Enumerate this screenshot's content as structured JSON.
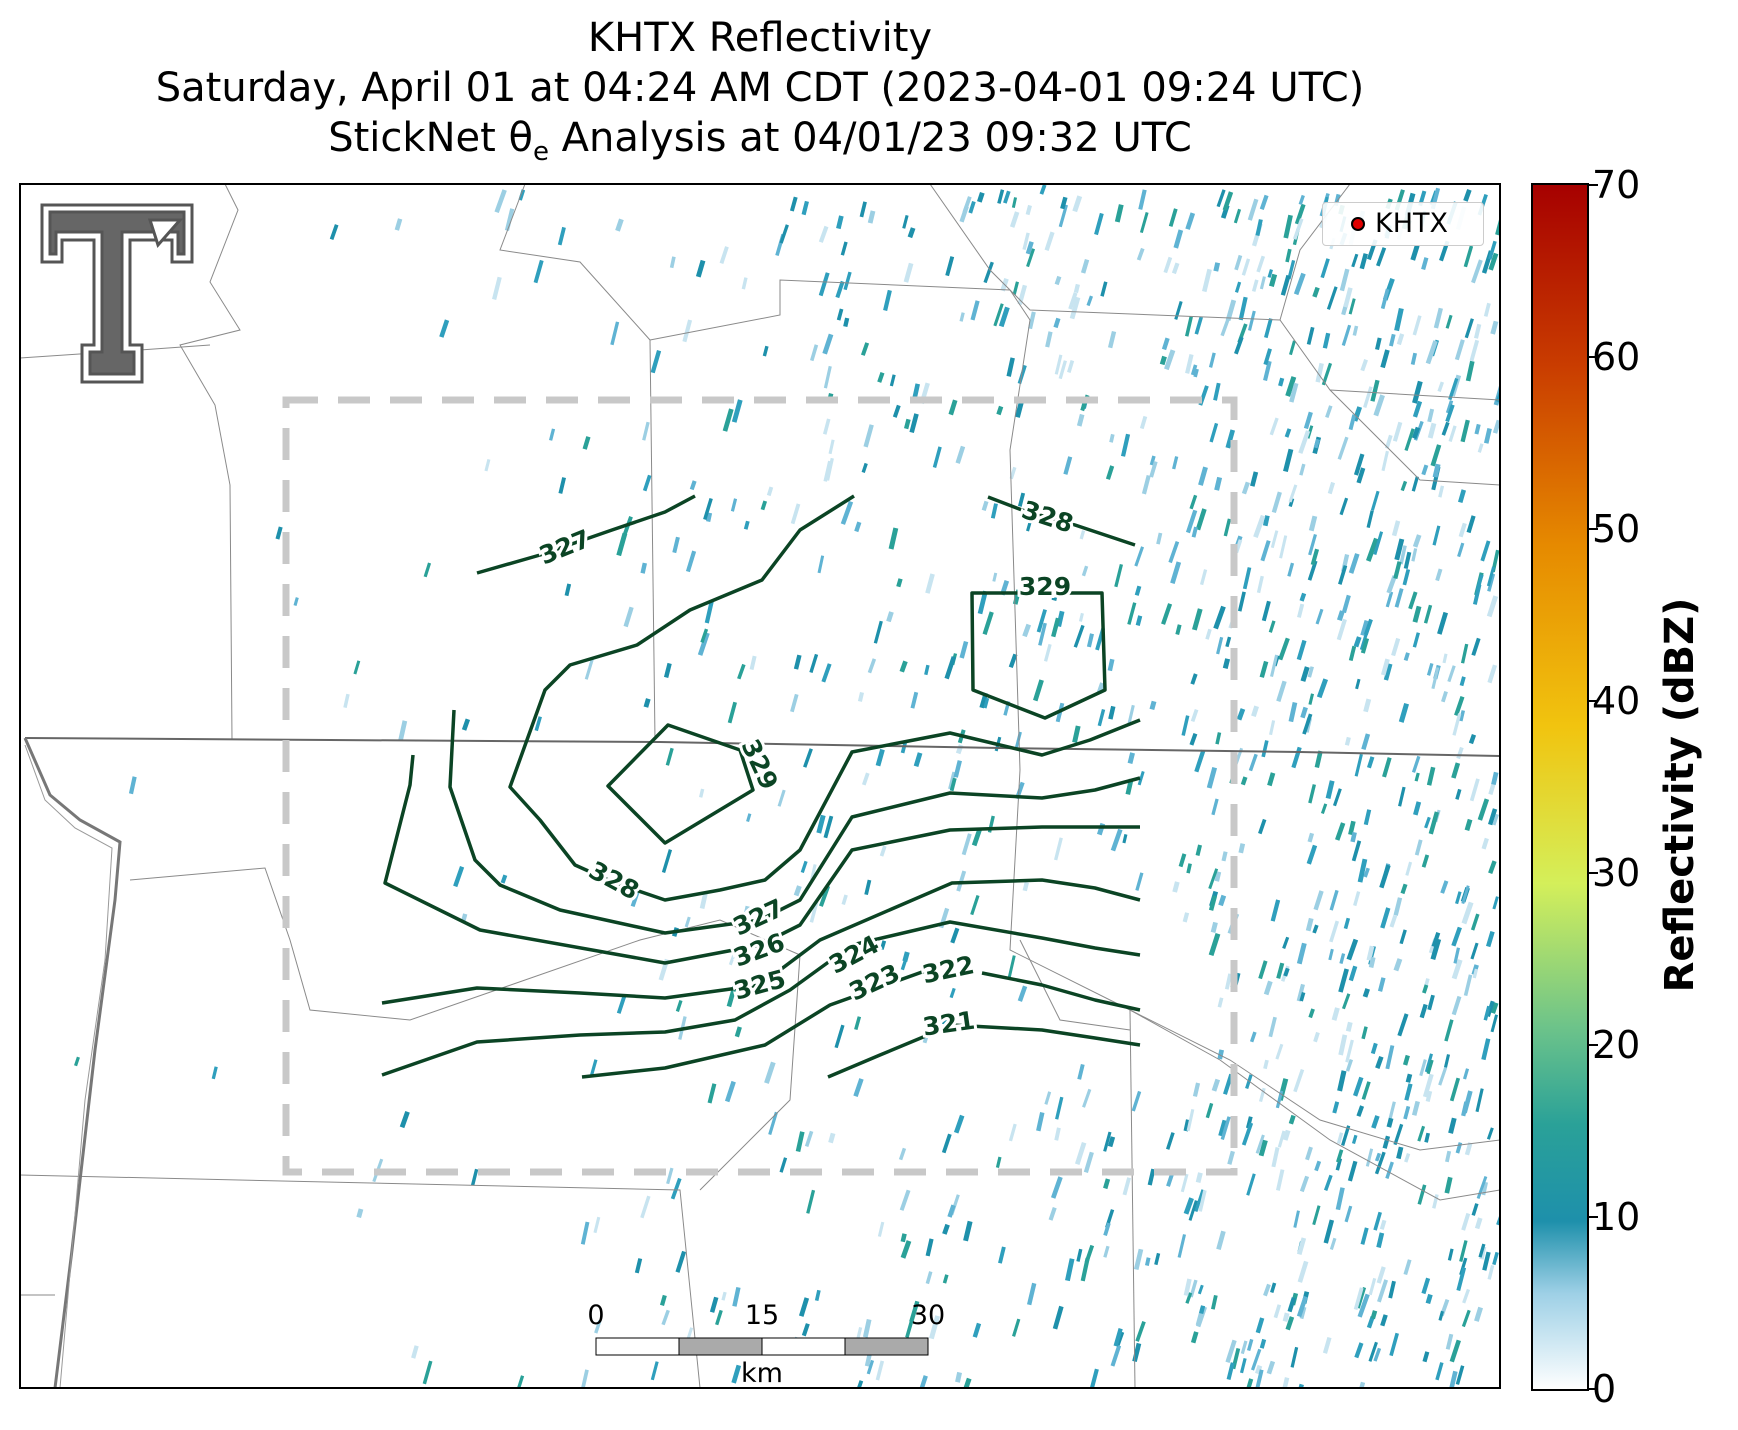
{
  "title": {
    "line1": "KHTX Reflectivity",
    "line2": "Saturday, April 01 at 04:24 AM CDT (2023-04-01 09:24 UTC)",
    "line3": "StickNet θe Analysis at 04/01/23 09:32 UTC"
  },
  "legend": {
    "marker_color": "#e00000",
    "label": "KHTX"
  },
  "colorbar": {
    "label": "Reflectivity (dBZ)",
    "ticks": [
      "70",
      "60",
      "50",
      "40",
      "30",
      "20",
      "10",
      "0"
    ],
    "range": [
      0,
      70
    ],
    "colors": [
      "#ffffff",
      "#1e90ab",
      "#2aa198",
      "#6cc38a",
      "#d4ef5a",
      "#f1c40f",
      "#e68a00",
      "#c93c00",
      "#a60000"
    ]
  },
  "contours": {
    "color": "#0b4424",
    "labels": [
      "327",
      "328",
      "329",
      "329",
      "328",
      "327",
      "326",
      "325",
      "324",
      "323",
      "322",
      "321"
    ]
  },
  "scalebar": {
    "ticks": [
      "0",
      "15",
      "30"
    ],
    "unit": "km"
  },
  "logo": {
    "name": "texas-tech-double-t"
  }
}
